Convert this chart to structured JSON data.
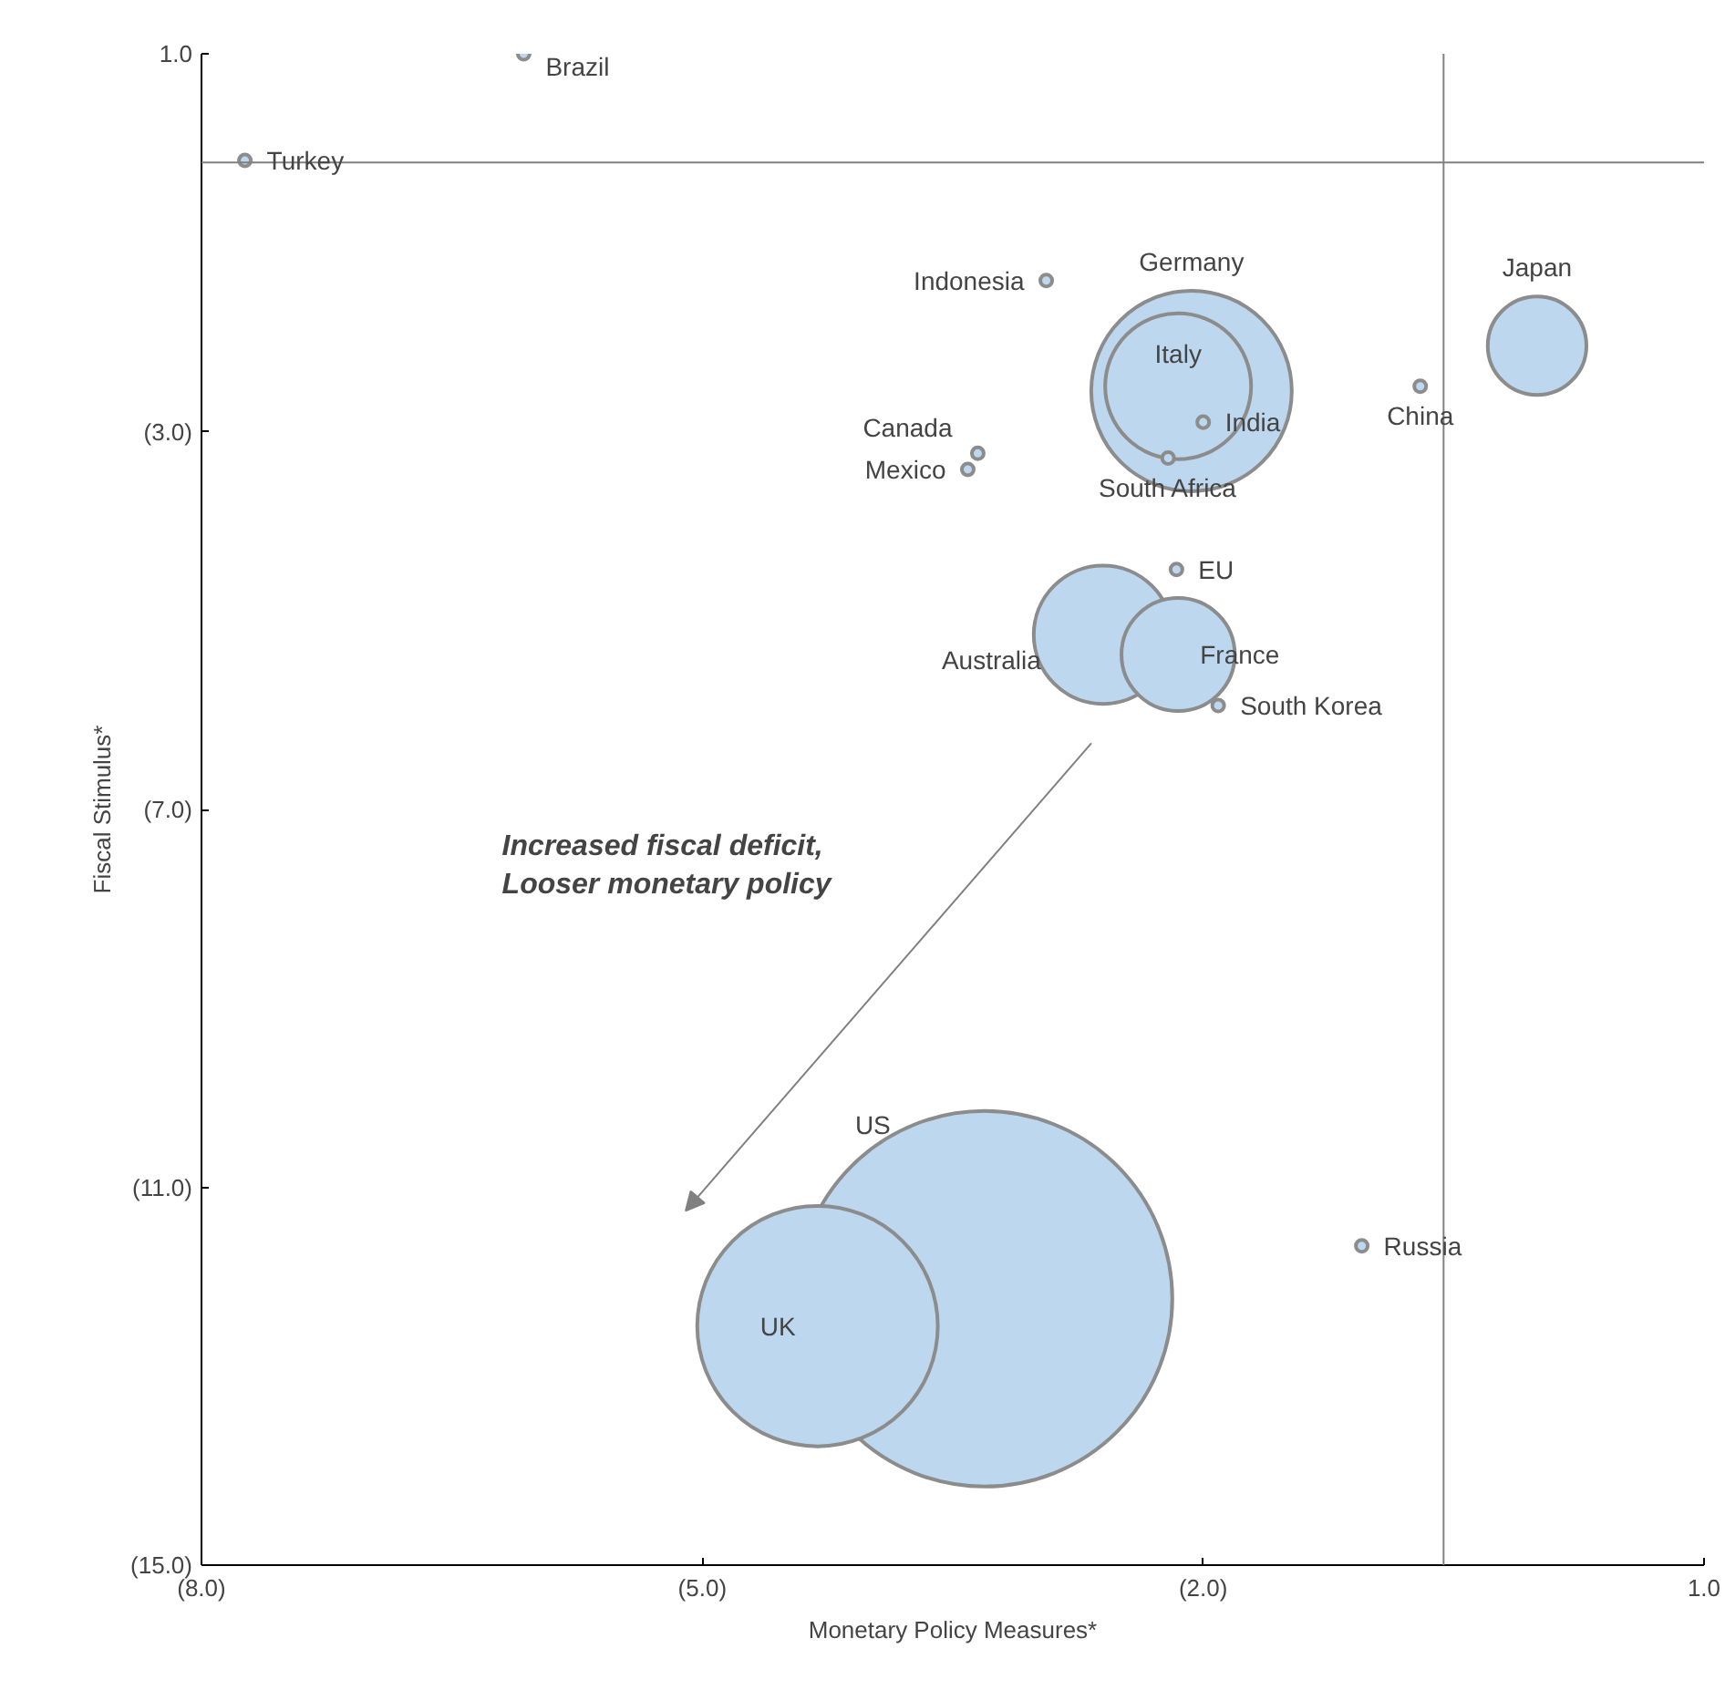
{
  "chart_data": {
    "type": "bubble",
    "xlabel": "Monetary Policy Measures*",
    "ylabel": "Fiscal Stimulus*",
    "color": "#bdd7ee",
    "series": [
      {
        "name": "Brazil",
        "x": [
          -6.07
        ],
        "values": [
          1.0
        ],
        "sizes": [
          0.001
        ]
      },
      {
        "name": "Turkey",
        "x": [
          -7.74
        ],
        "values": [
          -0.13
        ],
        "sizes": [
          0.001
        ]
      },
      {
        "name": "Indonesia",
        "x": [
          -2.94
        ],
        "values": [
          -1.4
        ],
        "sizes": [
          0.001
        ]
      },
      {
        "name": "Germany",
        "x": [
          -2.07
        ],
        "values": [
          -2.57
        ],
        "sizes": [
          0.285
        ]
      },
      {
        "name": "Italy",
        "x": [
          -2.15
        ],
        "values": [
          -2.52
        ],
        "sizes": [
          0.151
        ]
      },
      {
        "name": "India",
        "x": [
          -2.0
        ],
        "values": [
          -2.9
        ],
        "sizes": [
          0.001
        ]
      },
      {
        "name": "Japan",
        "x": [
          0.0
        ],
        "values": [
          -2.09
        ],
        "sizes": [
          0.069
        ]
      },
      {
        "name": "China",
        "x": [
          -0.7
        ],
        "values": [
          -2.52
        ],
        "sizes": [
          0.001
        ]
      },
      {
        "name": "Canada",
        "x": [
          -3.35
        ],
        "values": [
          -3.23
        ],
        "sizes": [
          0.001
        ]
      },
      {
        "name": "Mexico",
        "x": [
          -3.41
        ],
        "values": [
          -3.4
        ],
        "sizes": [
          0.001
        ]
      },
      {
        "name": "South Africa",
        "x": [
          -2.21
        ],
        "values": [
          -3.28
        ],
        "sizes": [
          0.001
        ]
      },
      {
        "name": "EU",
        "x": [
          -2.16
        ],
        "values": [
          -4.46
        ],
        "sizes": [
          0.001
        ]
      },
      {
        "name": "Australia",
        "x": [
          -2.6
        ],
        "values": [
          -5.15
        ],
        "sizes": [
          0.136
        ]
      },
      {
        "name": "France",
        "x": [
          -2.15
        ],
        "values": [
          -5.36
        ],
        "sizes": [
          0.091
        ]
      },
      {
        "name": "South Korea",
        "x": [
          -1.91
        ],
        "values": [
          -5.9
        ],
        "sizes": [
          0.001
        ]
      },
      {
        "name": "US",
        "x": [
          -3.31
        ],
        "values": [
          -12.18
        ],
        "sizes": [
          1
        ]
      },
      {
        "name": "UK",
        "x": [
          -4.31
        ],
        "values": [
          -12.47
        ],
        "sizes": [
          0.41
        ]
      },
      {
        "name": "Russia",
        "x": [
          -1.05
        ],
        "values": [
          -11.62
        ],
        "sizes": [
          0.001
        ]
      }
    ],
    "xlim": [
      -8,
      1
    ],
    "ylim": [
      -15,
      1
    ],
    "xticks": [
      {
        "value": -8,
        "label": "(8.0)"
      },
      {
        "value": -5,
        "label": "(5.0)"
      },
      {
        "value": -2,
        "label": "(2.0)"
      },
      {
        "value": 1,
        "label": "1.0"
      }
    ],
    "yticks": [
      {
        "value": 1,
        "label": "1.0"
      },
      {
        "value": -3,
        "label": "(3.0)"
      },
      {
        "value": -7,
        "label": "(7.0)"
      },
      {
        "value": -11,
        "label": "(11.0)"
      },
      {
        "value": -15,
        "label": "(15.0)"
      }
    ],
    "ref_lines": [
      {
        "axis": "y",
        "value": -0.15,
        "color": "#808080"
      },
      {
        "axis": "x",
        "value": -0.56,
        "color": "#808080"
      }
    ],
    "annotations": [
      "Increased fiscal deficit,\nLooser monetary policy"
    ],
    "grid": false
  }
}
